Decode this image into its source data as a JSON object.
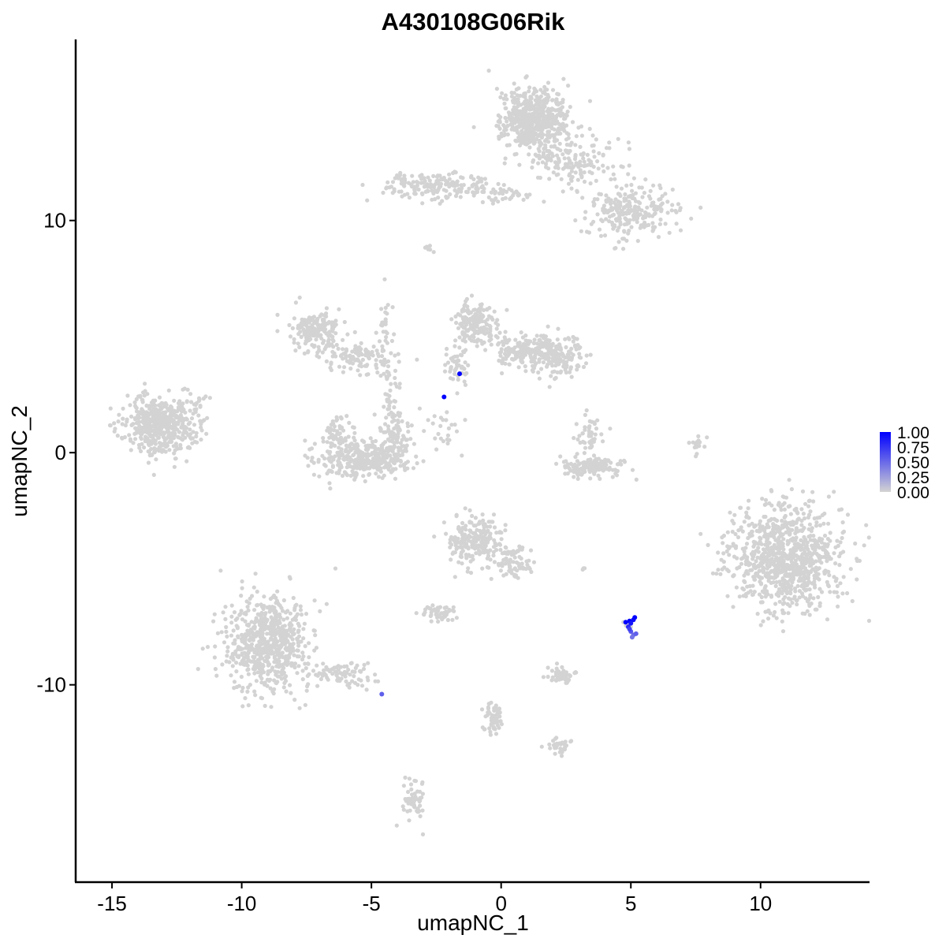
{
  "chart_data": {
    "type": "scatter",
    "title": "A430108G06Rik",
    "xlabel": "umapNC_1",
    "ylabel": "umapNC_2",
    "xlim": [
      -16.4,
      14.2
    ],
    "ylim": [
      -18.5,
      17.8
    ],
    "x_ticks": [
      -15,
      -10,
      -5,
      0,
      5,
      10
    ],
    "x_tick_labels": [
      "-15",
      "-10",
      "-5",
      "0",
      "5",
      "10"
    ],
    "y_ticks": [
      -10,
      0,
      10
    ],
    "y_tick_labels": [
      "-10",
      "0",
      "10"
    ],
    "grid": false,
    "legend": {
      "type": "colorbar",
      "placement": "right",
      "labels": [
        "1.00",
        "0.75",
        "0.50",
        "0.25",
        "0.00"
      ],
      "values": [
        1.0,
        0.75,
        0.5,
        0.25,
        0.0
      ],
      "low_color": "#d3d3d3",
      "high_color": "#0000ff"
    },
    "point_color_zero": "#d3d3d3",
    "clusters": [
      {
        "cx": 1.3,
        "cy": 14.3,
        "sx": 0.75,
        "sy": 0.85,
        "n": 600
      },
      {
        "cx": 2.8,
        "cy": 12.6,
        "sx": 1.2,
        "sy": 0.7,
        "n": 150
      },
      {
        "cx": 5.0,
        "cy": 10.4,
        "sx": 1.0,
        "sy": 0.7,
        "n": 250
      },
      {
        "cx": -2.4,
        "cy": 11.5,
        "sx": 1.3,
        "sy": 0.4,
        "n": 180
      },
      {
        "cx": 0.2,
        "cy": 11.1,
        "sx": 0.9,
        "sy": 0.25,
        "n": 40
      },
      {
        "cx": -13.2,
        "cy": 1.2,
        "sx": 0.85,
        "sy": 0.75,
        "n": 500
      },
      {
        "cx": -11.9,
        "cy": 1.7,
        "sx": 0.4,
        "sy": 0.7,
        "n": 40
      },
      {
        "cx": -7.2,
        "cy": 5.3,
        "sx": 0.6,
        "sy": 0.55,
        "n": 160
      },
      {
        "cx": -5.5,
        "cy": 4.1,
        "sx": 1.0,
        "sy": 0.4,
        "n": 120
      },
      {
        "cx": -4.3,
        "cy": 2.0,
        "sx": 0.3,
        "sy": 1.2,
        "n": 60
      },
      {
        "cx": -5.2,
        "cy": -0.3,
        "sx": 1.1,
        "sy": 0.5,
        "n": 350
      },
      {
        "cx": -6.2,
        "cy": 0.8,
        "sx": 0.35,
        "sy": 0.5,
        "n": 60
      },
      {
        "cx": -4.0,
        "cy": 0.6,
        "sx": 0.35,
        "sy": 0.6,
        "n": 60
      },
      {
        "cx": -1.0,
        "cy": 5.5,
        "sx": 0.5,
        "sy": 0.6,
        "n": 180
      },
      {
        "cx": 0.9,
        "cy": 4.4,
        "sx": 0.9,
        "sy": 0.5,
        "n": 200
      },
      {
        "cx": 2.3,
        "cy": 4.1,
        "sx": 0.6,
        "sy": 0.5,
        "n": 120
      },
      {
        "cx": -1.7,
        "cy": 3.7,
        "sx": 0.35,
        "sy": 0.5,
        "n": 50
      },
      {
        "cx": 3.6,
        "cy": -0.6,
        "sx": 0.75,
        "sy": 0.25,
        "n": 140
      },
      {
        "cx": 3.4,
        "cy": 0.8,
        "sx": 0.35,
        "sy": 0.5,
        "n": 50
      },
      {
        "cx": 10.9,
        "cy": -4.5,
        "sx": 1.35,
        "sy": 1.45,
        "n": 900
      },
      {
        "cx": -9.0,
        "cy": -8.2,
        "sx": 1.0,
        "sy": 1.3,
        "n": 650
      },
      {
        "cx": -6.0,
        "cy": -9.5,
        "sx": 0.9,
        "sy": 0.4,
        "n": 80
      },
      {
        "cx": -1.0,
        "cy": -3.8,
        "sx": 0.6,
        "sy": 0.65,
        "n": 200
      },
      {
        "cx": 0.5,
        "cy": -4.8,
        "sx": 0.45,
        "sy": 0.5,
        "n": 80
      },
      {
        "cx": -2.4,
        "cy": -6.9,
        "sx": 0.35,
        "sy": 0.2,
        "n": 50
      },
      {
        "cx": 2.3,
        "cy": -9.6,
        "sx": 0.4,
        "sy": 0.2,
        "n": 60
      },
      {
        "cx": -0.3,
        "cy": -11.4,
        "sx": 0.25,
        "sy": 0.5,
        "n": 60
      },
      {
        "cx": 2.3,
        "cy": -12.6,
        "sx": 0.3,
        "sy": 0.2,
        "n": 30
      },
      {
        "cx": -3.4,
        "cy": -15.0,
        "sx": 0.25,
        "sy": 0.6,
        "n": 60
      },
      {
        "cx": 7.6,
        "cy": 0.2,
        "sx": 0.15,
        "sy": 0.4,
        "n": 15
      },
      {
        "cx": -4.5,
        "cy": 5.5,
        "sx": 0.2,
        "sy": 1.2,
        "n": 25
      },
      {
        "cx": -2.2,
        "cy": 1.0,
        "sx": 0.5,
        "sy": 0.5,
        "n": 25
      },
      {
        "cx": -2.7,
        "cy": 8.8,
        "sx": 0.2,
        "sy": 0.1,
        "n": 6
      },
      {
        "cx": 4.9,
        "cy": -7.4,
        "sx": 0.12,
        "sy": 0.12,
        "n": 8
      },
      {
        "cx": 3.2,
        "cy": -5.0,
        "sx": 0.1,
        "sy": 0.05,
        "n": 3
      }
    ],
    "expressing_points": [
      {
        "x": -1.6,
        "y": 3.4,
        "value": 1.0
      },
      {
        "x": -2.2,
        "y": 2.4,
        "value": 1.0
      },
      {
        "x": -4.6,
        "y": -10.4,
        "value": 0.55
      },
      {
        "x": 4.8,
        "y": -7.3,
        "value": 1.0
      },
      {
        "x": 4.95,
        "y": -7.25,
        "value": 1.0
      },
      {
        "x": 5.1,
        "y": -7.2,
        "value": 0.95
      },
      {
        "x": 5.0,
        "y": -7.35,
        "value": 0.9
      },
      {
        "x": 5.15,
        "y": -7.1,
        "value": 1.0
      },
      {
        "x": 4.9,
        "y": -7.5,
        "value": 0.8
      },
      {
        "x": 5.0,
        "y": -7.7,
        "value": 0.6
      },
      {
        "x": 5.1,
        "y": -7.85,
        "value": 0.5
      },
      {
        "x": 4.95,
        "y": -7.6,
        "value": 0.7
      },
      {
        "x": 5.2,
        "y": -7.8,
        "value": 0.55
      },
      {
        "x": 5.05,
        "y": -7.95,
        "value": 0.45
      }
    ]
  }
}
